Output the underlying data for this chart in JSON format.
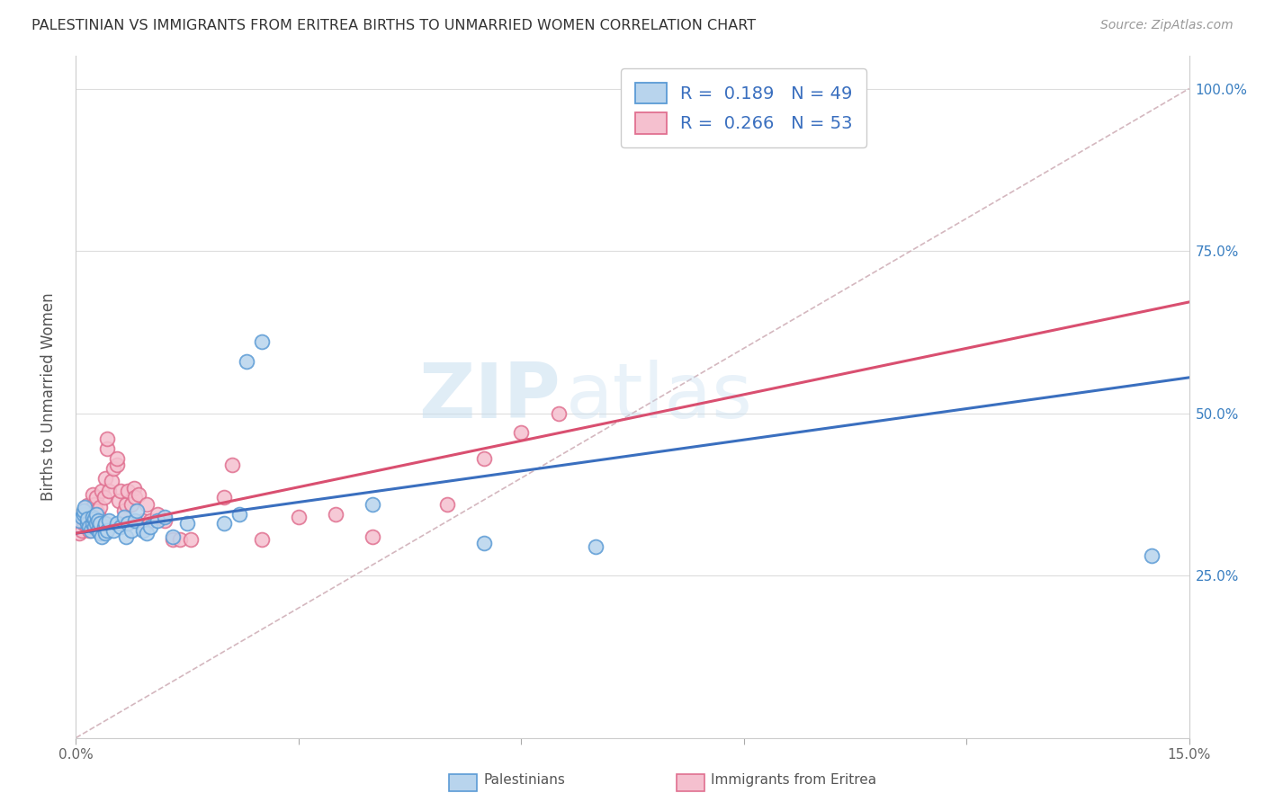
{
  "title": "PALESTINIAN VS IMMIGRANTS FROM ERITREA BIRTHS TO UNMARRIED WOMEN CORRELATION CHART",
  "source": "Source: ZipAtlas.com",
  "ylabel_label": "Births to Unmarried Women",
  "xlim": [
    0.0,
    0.15
  ],
  "ylim": [
    0.0,
    1.05
  ],
  "ytick_vals": [
    0.0,
    0.25,
    0.5,
    0.75,
    1.0
  ],
  "ytick_labels_right": [
    "",
    "25.0%",
    "50.0%",
    "75.0%",
    "100.0%"
  ],
  "xtick_vals": [
    0.0,
    0.03,
    0.06,
    0.09,
    0.12,
    0.15
  ],
  "xtick_labels": [
    "0.0%",
    "",
    "",
    "",
    "",
    "15.0%"
  ],
  "watermark_zip": "ZIP",
  "watermark_atlas": "atlas",
  "blue_face": "#b8d4ed",
  "blue_edge": "#5b9bd5",
  "pink_face": "#f5c0cf",
  "pink_edge": "#e07090",
  "trend_blue": "#3a6fbf",
  "trend_pink": "#d94f70",
  "diagonal_color": "#d0b0b8",
  "legend_R_blue": "R =  0.189   N = 49",
  "legend_R_pink": "R =  0.266   N = 53",
  "legend_text_color": "#3a6fbf",
  "palestinians_x": [
    0.0005,
    0.0008,
    0.001,
    0.001,
    0.0012,
    0.0015,
    0.0015,
    0.0018,
    0.002,
    0.0022,
    0.0022,
    0.0025,
    0.0025,
    0.0028,
    0.0028,
    0.003,
    0.003,
    0.0032,
    0.0032,
    0.0035,
    0.0038,
    0.004,
    0.004,
    0.0042,
    0.0045,
    0.005,
    0.0055,
    0.006,
    0.0065,
    0.0068,
    0.007,
    0.0075,
    0.008,
    0.0082,
    0.009,
    0.0095,
    0.01,
    0.011,
    0.012,
    0.013,
    0.015,
    0.02,
    0.022,
    0.023,
    0.025,
    0.04,
    0.055,
    0.07,
    0.145
  ],
  "palestinians_y": [
    0.335,
    0.34,
    0.345,
    0.35,
    0.355,
    0.33,
    0.338,
    0.325,
    0.32,
    0.33,
    0.34,
    0.325,
    0.338,
    0.33,
    0.345,
    0.32,
    0.335,
    0.315,
    0.33,
    0.31,
    0.325,
    0.315,
    0.33,
    0.32,
    0.335,
    0.32,
    0.33,
    0.325,
    0.34,
    0.31,
    0.33,
    0.32,
    0.335,
    0.35,
    0.32,
    0.315,
    0.325,
    0.335,
    0.34,
    0.31,
    0.33,
    0.33,
    0.345,
    0.58,
    0.61,
    0.36,
    0.3,
    0.295,
    0.28
  ],
  "eritrea_x": [
    0.0005,
    0.0008,
    0.001,
    0.001,
    0.0012,
    0.0015,
    0.0015,
    0.0018,
    0.002,
    0.0022,
    0.0022,
    0.0025,
    0.0028,
    0.0028,
    0.003,
    0.0032,
    0.0035,
    0.0038,
    0.004,
    0.0042,
    0.0042,
    0.0045,
    0.0048,
    0.005,
    0.0055,
    0.0055,
    0.0058,
    0.006,
    0.0065,
    0.0068,
    0.007,
    0.0075,
    0.0078,
    0.008,
    0.0085,
    0.009,
    0.0095,
    0.01,
    0.011,
    0.012,
    0.013,
    0.014,
    0.0155,
    0.02,
    0.021,
    0.025,
    0.03,
    0.035,
    0.04,
    0.05,
    0.055,
    0.06,
    0.065
  ],
  "eritrea_y": [
    0.315,
    0.32,
    0.33,
    0.34,
    0.35,
    0.325,
    0.358,
    0.32,
    0.325,
    0.355,
    0.375,
    0.36,
    0.37,
    0.35,
    0.345,
    0.355,
    0.38,
    0.37,
    0.4,
    0.445,
    0.46,
    0.38,
    0.395,
    0.415,
    0.42,
    0.43,
    0.365,
    0.38,
    0.35,
    0.36,
    0.38,
    0.36,
    0.385,
    0.37,
    0.375,
    0.335,
    0.36,
    0.335,
    0.345,
    0.335,
    0.305,
    0.305,
    0.305,
    0.37,
    0.42,
    0.305,
    0.34,
    0.345,
    0.31,
    0.36,
    0.43,
    0.47,
    0.5
  ],
  "blue_trend_x0": 0.0,
  "blue_trend_y0": 0.315,
  "blue_trend_x1": 0.15,
  "blue_trend_y1": 0.555,
  "pink_trend_x0": 0.0,
  "pink_trend_y0": 0.315,
  "pink_trend_x1": 0.08,
  "pink_trend_y1": 0.505
}
